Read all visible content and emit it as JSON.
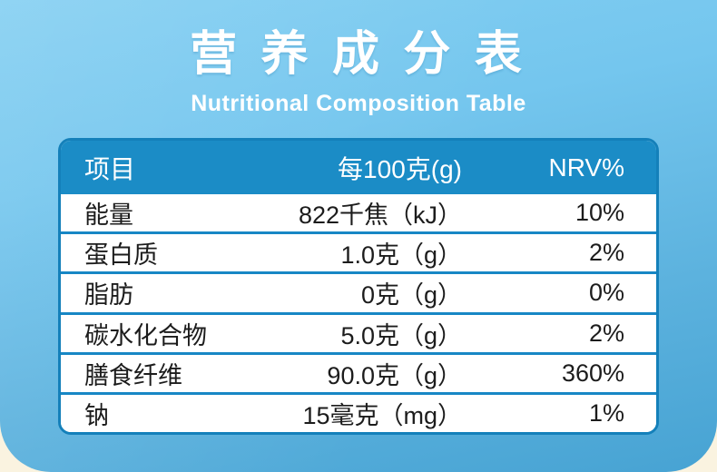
{
  "header": {
    "title_zh": "营 养 成 分 表",
    "title_en": "Nutritional Composition Table"
  },
  "table": {
    "columns": {
      "item": "项目",
      "per": "每100克(g)",
      "nrv": "NRV%"
    },
    "rows": [
      {
        "item": "能量",
        "value": "822千焦（kJ）",
        "nrv": "10%"
      },
      {
        "item": "蛋白质",
        "value": "1.0克（g）",
        "nrv": "2%"
      },
      {
        "item": "脂肪",
        "value": "0克（g）",
        "nrv": "0%"
      },
      {
        "item": "碳水化合物",
        "value": "5.0克（g）",
        "nrv": "2%"
      },
      {
        "item": "膳食纤维",
        "value": "90.0克（g）",
        "nrv": "360%"
      },
      {
        "item": "钠",
        "value": "15毫克（mg）",
        "nrv": "1%"
      }
    ]
  },
  "colors": {
    "panel_top": "#84cff2",
    "panel_bottom": "#47a3d3",
    "page_background": "#faf3e0",
    "table_header_bg": "#1b8cc6",
    "table_border": "#1480ba",
    "row_divider": "#1787c5",
    "title_text": "#ffffff",
    "row_text": "#1c1c1c"
  }
}
